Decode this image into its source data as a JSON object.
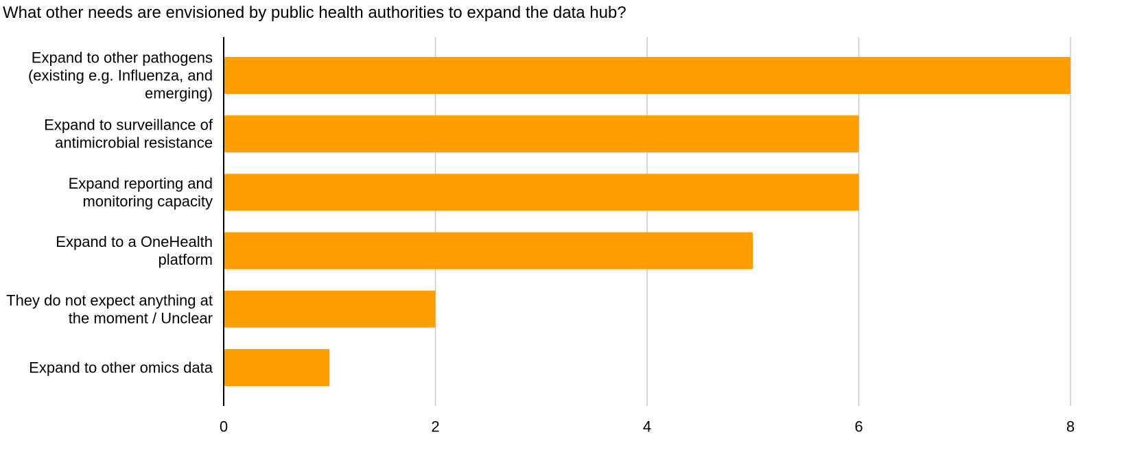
{
  "chart_data": {
    "type": "bar",
    "orientation": "horizontal",
    "title": "What other needs are envisioned by public health authorities to expand the data hub?",
    "categories": [
      [
        "Expand to other pathogens",
        "(existing e.g. Influenza, and",
        "emerging)"
      ],
      [
        "Expand to surveillance of",
        "antimicrobial resistance"
      ],
      [
        "Expand reporting and",
        "monitoring capacity"
      ],
      [
        "Expand to a OneHealth",
        "platform"
      ],
      [
        "They do not expect anything at",
        "the moment / Unclear"
      ],
      [
        "Expand to other omics data"
      ]
    ],
    "values": [
      8,
      6,
      6,
      5,
      2,
      1
    ],
    "xlim": [
      0,
      8
    ],
    "xticks": [
      "0",
      "2",
      "4",
      "6",
      "8"
    ],
    "grid": true,
    "bar_color": "#FF9E00",
    "grid_color": "#C8C8C8",
    "axis_color": "#000000"
  }
}
